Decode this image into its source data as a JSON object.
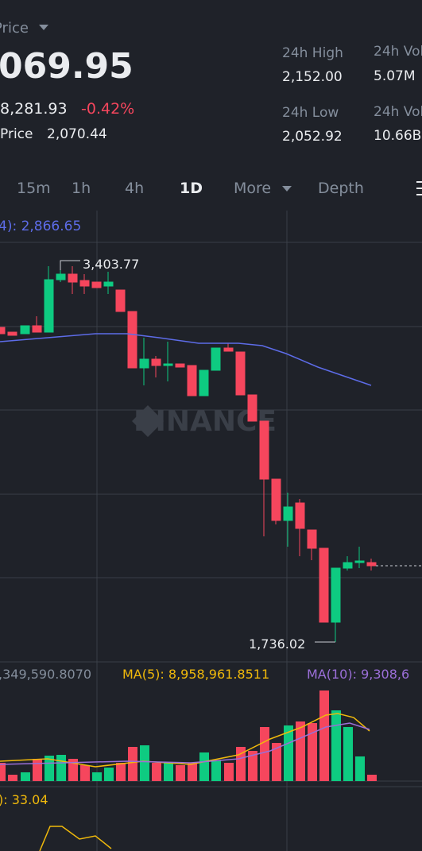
{
  "header": {
    "price_label": "Price",
    "last_price": "069.95",
    "usd_price": "8,281.93",
    "change": "-0.42%",
    "mark_price_label": "Price",
    "mark_price": "2,070.44"
  },
  "stats": [
    {
      "label": "24h High",
      "value": "2,152.00"
    },
    {
      "label": "24h Low",
      "value": "2,052.92"
    },
    {
      "label": "24h Vol",
      "value": "5.07M"
    },
    {
      "label": "24h Vol",
      "value": "10.66B"
    }
  ],
  "tabs": [
    "15m",
    "1h",
    "4h",
    "1D",
    "More",
    "Depth"
  ],
  "chart": {
    "ma_label": "4): 2,866.65",
    "high_label": "3,403.77",
    "low_label": "1,736.02",
    "watermark": "BINANCE"
  },
  "volume": {
    "vol_label": ",349,590.8070",
    "ma5_label": "MA(5): 8,958,961.8511",
    "ma10_label": "MA(10): 9,308,6"
  },
  "rsi": {
    "label": "): 33.04"
  }
}
